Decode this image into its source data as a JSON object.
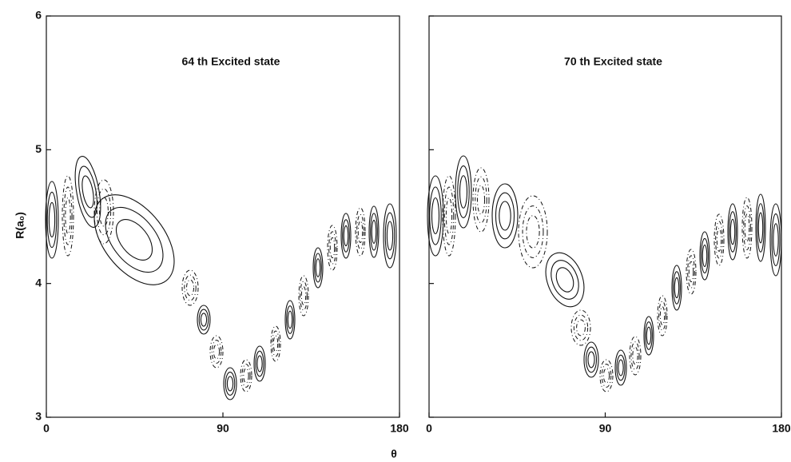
{
  "chart_data": [
    {
      "type": "contour",
      "title": "64 th  Excited state",
      "ylabel": "R(a₀)",
      "xlabel": "θ",
      "xlim": [
        0,
        180
      ],
      "ylim": [
        3,
        6
      ],
      "xticks": [
        0,
        90,
        180
      ],
      "yticks": [
        3,
        4,
        5,
        6
      ],
      "ytick_labels": true
    },
    {
      "type": "contour",
      "title": "70 th  Excited state",
      "xlim": [
        0,
        180
      ],
      "ylim": [
        3,
        6
      ],
      "xticks": [
        0,
        90,
        180
      ],
      "yticks": [
        3,
        4,
        5,
        6
      ],
      "ytick_labels": false
    }
  ]
}
